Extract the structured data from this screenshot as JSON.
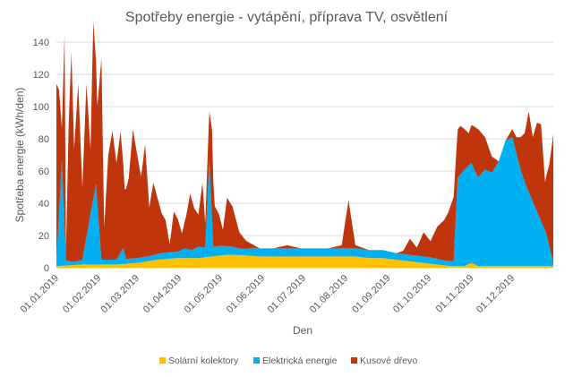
{
  "chart_data": {
    "type": "area",
    "stacked": true,
    "title": "Spotřeby energie - vytápění, příprava TV, osvětlení",
    "xlabel": "Den",
    "ylabel": "Spotřeba energie (kWh/den)",
    "ylim": [
      0,
      140
    ],
    "yticks": [
      0,
      20,
      40,
      60,
      80,
      100,
      120,
      140
    ],
    "xticks": [
      "01.01.2019",
      "01.02.2019",
      "01.03.2019",
      "01.04.2019",
      "01.05.2019",
      "01.06.2019",
      "01.07.2019",
      "01.08.2019",
      "01.09.2019",
      "01.10.2019",
      "01.11.2019",
      "01.12.2019"
    ],
    "grid": true,
    "legend_position": "bottom",
    "series": [
      {
        "name": "Solární kolektory",
        "color": "#FFC000",
        "points": [
          [
            1,
            1
          ],
          [
            20,
            2
          ],
          [
            45,
            2
          ],
          [
            60,
            3
          ],
          [
            75,
            5
          ],
          [
            90,
            6
          ],
          [
            105,
            6
          ],
          [
            115,
            7
          ],
          [
            125,
            8
          ],
          [
            135,
            8
          ],
          [
            150,
            7
          ],
          [
            165,
            7
          ],
          [
            180,
            7
          ],
          [
            195,
            7
          ],
          [
            210,
            7
          ],
          [
            220,
            7
          ],
          [
            230,
            6
          ],
          [
            240,
            6
          ],
          [
            250,
            5
          ],
          [
            260,
            4
          ],
          [
            270,
            3
          ],
          [
            280,
            2
          ],
          [
            290,
            1
          ],
          [
            300,
            1
          ],
          [
            305,
            3
          ],
          [
            310,
            1
          ],
          [
            330,
            1
          ],
          [
            345,
            1
          ],
          [
            365,
            1
          ]
        ]
      },
      {
        "name": "Elektrická energie",
        "color": "#00B0F0",
        "points": [
          [
            1,
            3
          ],
          [
            5,
            65
          ],
          [
            8,
            3
          ],
          [
            14,
            2
          ],
          [
            20,
            3
          ],
          [
            30,
            50
          ],
          [
            34,
            3
          ],
          [
            45,
            3
          ],
          [
            50,
            10
          ],
          [
            52,
            3
          ],
          [
            60,
            3
          ],
          [
            70,
            3
          ],
          [
            80,
            4
          ],
          [
            90,
            4
          ],
          [
            95,
            6
          ],
          [
            100,
            5
          ],
          [
            105,
            7
          ],
          [
            110,
            6
          ],
          [
            113,
            60
          ],
          [
            116,
            6
          ],
          [
            120,
            6
          ],
          [
            130,
            5
          ],
          [
            135,
            4
          ],
          [
            140,
            4
          ],
          [
            145,
            5
          ],
          [
            150,
            5
          ],
          [
            165,
            5
          ],
          [
            180,
            5
          ],
          [
            195,
            5
          ],
          [
            210,
            5
          ],
          [
            225,
            5
          ],
          [
            240,
            5
          ],
          [
            250,
            4
          ],
          [
            255,
            4
          ],
          [
            265,
            4
          ],
          [
            275,
            4
          ],
          [
            285,
            3
          ],
          [
            292,
            3
          ],
          [
            295,
            55
          ],
          [
            300,
            60
          ],
          [
            305,
            62
          ],
          [
            310,
            55
          ],
          [
            315,
            60
          ],
          [
            320,
            58
          ],
          [
            325,
            65
          ],
          [
            330,
            78
          ],
          [
            335,
            80
          ],
          [
            338,
            70
          ],
          [
            341,
            60
          ],
          [
            345,
            50
          ],
          [
            350,
            40
          ],
          [
            355,
            30
          ],
          [
            360,
            20
          ],
          [
            365,
            2
          ]
        ]
      },
      {
        "name": "Kusové dřevo",
        "color": "#C0360C",
        "points": [
          [
            1,
            110
          ],
          [
            3,
            75
          ],
          [
            5,
            20
          ],
          [
            7,
            120
          ],
          [
            8,
            5
          ],
          [
            10,
            85
          ],
          [
            12,
            130
          ],
          [
            14,
            70
          ],
          [
            17,
            110
          ],
          [
            20,
            45
          ],
          [
            23,
            95
          ],
          [
            26,
            40
          ],
          [
            28,
            110
          ],
          [
            31,
            60
          ],
          [
            34,
            125
          ],
          [
            36,
            20
          ],
          [
            39,
            65
          ],
          [
            42,
            80
          ],
          [
            45,
            60
          ],
          [
            48,
            75
          ],
          [
            51,
            40
          ],
          [
            54,
            50
          ],
          [
            57,
            80
          ],
          [
            60,
            65
          ],
          [
            63,
            50
          ],
          [
            66,
            70
          ],
          [
            69,
            30
          ],
          [
            72,
            45
          ],
          [
            75,
            35
          ],
          [
            78,
            25
          ],
          [
            81,
            20
          ],
          [
            84,
            5
          ],
          [
            87,
            25
          ],
          [
            90,
            20
          ],
          [
            93,
            10
          ],
          [
            96,
            20
          ],
          [
            99,
            35
          ],
          [
            102,
            25
          ],
          [
            105,
            20
          ],
          [
            108,
            40
          ],
          [
            110,
            15
          ],
          [
            113,
            30
          ],
          [
            115,
            55
          ],
          [
            117,
            25
          ],
          [
            120,
            20
          ],
          [
            123,
            10
          ],
          [
            126,
            30
          ],
          [
            130,
            25
          ],
          [
            135,
            10
          ],
          [
            140,
            5
          ],
          [
            145,
            2
          ],
          [
            150,
            0
          ],
          [
            160,
            0
          ],
          [
            170,
            2
          ],
          [
            180,
            0
          ],
          [
            190,
            0
          ],
          [
            200,
            0
          ],
          [
            210,
            2
          ],
          [
            215,
            30
          ],
          [
            220,
            2
          ],
          [
            230,
            0
          ],
          [
            240,
            0
          ],
          [
            250,
            0
          ],
          [
            255,
            2
          ],
          [
            260,
            10
          ],
          [
            265,
            5
          ],
          [
            270,
            15
          ],
          [
            275,
            10
          ],
          [
            280,
            20
          ],
          [
            285,
            25
          ],
          [
            288,
            30
          ],
          [
            292,
            40
          ],
          [
            295,
            30
          ],
          [
            297,
            30
          ],
          [
            300,
            25
          ],
          [
            303,
            20
          ],
          [
            306,
            25
          ],
          [
            310,
            30
          ],
          [
            315,
            20
          ],
          [
            320,
            10
          ],
          [
            325,
            0
          ],
          [
            330,
            0
          ],
          [
            335,
            5
          ],
          [
            338,
            10
          ],
          [
            341,
            20
          ],
          [
            344,
            30
          ],
          [
            347,
            50
          ],
          [
            350,
            40
          ],
          [
            353,
            55
          ],
          [
            356,
            60
          ],
          [
            359,
            30
          ],
          [
            362,
            50
          ],
          [
            365,
            80
          ]
        ]
      }
    ]
  }
}
